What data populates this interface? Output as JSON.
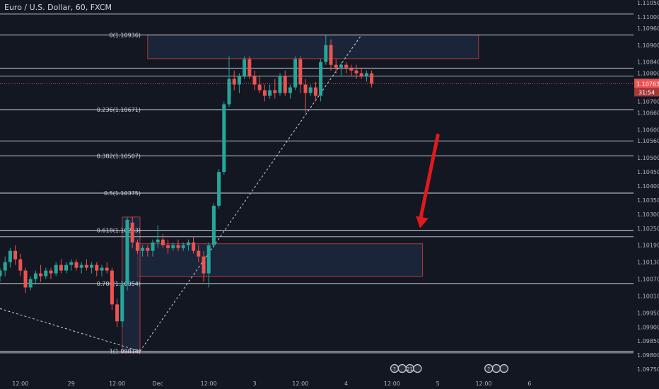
{
  "header": {
    "title": "Euro / U.S. Dollar, 60, FXCM"
  },
  "price_tag": {
    "value": "1.10763",
    "countdown": "31:54"
  },
  "colors": {
    "background": "#131722",
    "up": "#26a69a",
    "down": "#ef5350",
    "zone_fill": "#1e2c45",
    "zone_border": "#b23a3a",
    "line": "#d1d4dc",
    "axis_text": "#b2b5be",
    "arrow": "#e0191c",
    "price_tag": "#ef5350"
  },
  "chart_data": {
    "type": "candlestick",
    "title": "Euro / U.S. Dollar, 60, FXCM",
    "ylim": [
      1.0973,
      1.1106
    ],
    "y_ticks": [
      "1.11050",
      "1.11000",
      "1.10960",
      "1.10900",
      "1.10840",
      "1.10800",
      "1.10760",
      "1.10700",
      "1.10660",
      "1.10600",
      "1.10560",
      "1.10500",
      "1.10450",
      "1.10400",
      "1.10350",
      "1.10300",
      "1.10250",
      "1.10190",
      "1.10130",
      "1.10070",
      "1.10010",
      "1.09950",
      "1.09900",
      "1.09850",
      "1.09800",
      "1.09750"
    ],
    "x_ticks": [
      {
        "label": "12:00",
        "t": 4
      },
      {
        "label": "29",
        "t": 14
      },
      {
        "label": "12:00",
        "t": 23
      },
      {
        "label": "Dec",
        "t": 31
      },
      {
        "label": "12:00",
        "t": 41
      },
      {
        "label": "3",
        "t": 50
      },
      {
        "label": "12:00",
        "t": 59
      },
      {
        "label": "4",
        "t": 68
      },
      {
        "label": "12:00",
        "t": 77
      },
      {
        "label": "5",
        "t": 86
      },
      {
        "label": "12:00",
        "t": 95
      },
      {
        "label": "6",
        "t": 104
      }
    ],
    "fib_levels": [
      {
        "label": "0(1.10936)",
        "value": 1.10936
      },
      {
        "label": "0.236(1.10671)",
        "value": 1.10671
      },
      {
        "label": "0.382(1.10507)",
        "value": 1.10507
      },
      {
        "label": "0.5(1.10375)",
        "value": 1.10375
      },
      {
        "label": "0.618(1.10243)",
        "value": 1.10243
      },
      {
        "label": "0.786(1.10054)",
        "value": 1.10054
      },
      {
        "label": "1(1.09814)",
        "value": 1.09814
      }
    ],
    "horizontal_lines": [
      1.1101,
      1.10818,
      1.1079,
      1.1056,
      1.1022,
      1.09808
    ],
    "current_price": 1.10763,
    "zones": [
      {
        "t0": 29,
        "t1": 94,
        "top": 1.10936,
        "bottom": 1.10852
      },
      {
        "t0": 27,
        "t1": 83,
        "top": 1.10195,
        "bottom": 1.1008
      },
      {
        "t0": 24,
        "t1": 27.5,
        "top": 1.1029,
        "bottom": 1.0981
      }
    ],
    "candles": [
      [
        0,
        1.1008,
        1.1011,
        1.1006,
        1.101
      ],
      [
        1,
        1.101,
        1.1015,
        1.1008,
        1.1013
      ],
      [
        2,
        1.1013,
        1.1018,
        1.1011,
        1.1017
      ],
      [
        3,
        1.1017,
        1.1019,
        1.1012,
        1.1014
      ],
      [
        4,
        1.1014,
        1.1016,
        1.1008,
        1.101
      ],
      [
        5,
        1.101,
        1.1011,
        1.1002,
        1.1004
      ],
      [
        6,
        1.1004,
        1.1008,
        1.1003,
        1.1007
      ],
      [
        7,
        1.1007,
        1.101,
        1.1005,
        1.1009
      ],
      [
        8,
        1.1009,
        1.1012,
        1.1006,
        1.1008
      ],
      [
        9,
        1.1008,
        1.1011,
        1.1007,
        1.101
      ],
      [
        10,
        1.101,
        1.1011,
        1.1007,
        1.1009
      ],
      [
        11,
        1.1009,
        1.1013,
        1.1008,
        1.1012
      ],
      [
        12,
        1.1012,
        1.1014,
        1.1009,
        1.101
      ],
      [
        13,
        1.101,
        1.1013,
        1.1009,
        1.1012
      ],
      [
        14,
        1.1012,
        1.1014,
        1.101,
        1.1013
      ],
      [
        15,
        1.1013,
        1.1014,
        1.101,
        1.1011
      ],
      [
        16,
        1.1011,
        1.1013,
        1.1009,
        1.1012
      ],
      [
        17,
        1.1012,
        1.1014,
        1.101,
        1.1011
      ],
      [
        18,
        1.1011,
        1.1013,
        1.1009,
        1.1012
      ],
      [
        19,
        1.1012,
        1.1013,
        1.1008,
        1.101
      ],
      [
        20,
        1.101,
        1.1012,
        1.1008,
        1.1011
      ],
      [
        21,
        1.1011,
        1.1013,
        1.1009,
        1.101
      ],
      [
        22,
        1.101,
        1.1011,
        1.0996,
        1.0998
      ],
      [
        23,
        1.0998,
        1.1,
        1.099,
        1.0992
      ],
      [
        24,
        1.0992,
        1.1006,
        1.099,
        1.1005
      ],
      [
        25,
        1.1005,
        1.1029,
        1.1003,
        1.1028
      ],
      [
        26,
        1.1027,
        1.1029,
        1.1018,
        1.102
      ],
      [
        27,
        1.102,
        1.1021,
        1.1016,
        1.1017
      ],
      [
        28,
        1.1017,
        1.1019,
        1.1015,
        1.1018
      ],
      [
        29,
        1.1018,
        1.1019,
        1.1015,
        1.1017
      ],
      [
        30,
        1.1017,
        1.1021,
        1.1015,
        1.102
      ],
      [
        31,
        1.102,
        1.1026,
        1.1018,
        1.1021
      ],
      [
        32,
        1.1021,
        1.1023,
        1.1018,
        1.1019
      ],
      [
        33,
        1.1019,
        1.1021,
        1.1016,
        1.1018
      ],
      [
        34,
        1.1018,
        1.102,
        1.1017,
        1.1019
      ],
      [
        35,
        1.1019,
        1.1021,
        1.1017,
        1.1018
      ],
      [
        36,
        1.1018,
        1.102,
        1.1017,
        1.1019
      ],
      [
        37,
        1.1019,
        1.1021,
        1.1017,
        1.102
      ],
      [
        38,
        1.102,
        1.1022,
        1.1016,
        1.1017
      ],
      [
        39,
        1.1017,
        1.1019,
        1.1013,
        1.1015
      ],
      [
        40,
        1.1015,
        1.1017,
        1.1006,
        1.1009
      ],
      [
        41,
        1.1009,
        1.102,
        1.1004,
        1.1019
      ],
      [
        42,
        1.1019,
        1.1034,
        1.1018,
        1.1033
      ],
      [
        43,
        1.1033,
        1.1046,
        1.1032,
        1.1045
      ],
      [
        44,
        1.1045,
        1.107,
        1.1044,
        1.1069
      ],
      [
        45,
        1.1069,
        1.1086,
        1.1068,
        1.1078
      ],
      [
        46,
        1.1078,
        1.1081,
        1.1074,
        1.1076
      ],
      [
        47,
        1.1076,
        1.108,
        1.1073,
        1.1079
      ],
      [
        48,
        1.1079,
        1.1086,
        1.1078,
        1.1085
      ],
      [
        49,
        1.1085,
        1.1086,
        1.1078,
        1.1079
      ],
      [
        50,
        1.1079,
        1.1081,
        1.1074,
        1.1076
      ],
      [
        51,
        1.1076,
        1.1079,
        1.1073,
        1.1074
      ],
      [
        52,
        1.1074,
        1.1076,
        1.107,
        1.1072
      ],
      [
        53,
        1.1072,
        1.1076,
        1.1071,
        1.1074
      ],
      [
        54,
        1.1074,
        1.1078,
        1.1071,
        1.1073
      ],
      [
        55,
        1.1073,
        1.108,
        1.1072,
        1.1079
      ],
      [
        56,
        1.1079,
        1.1081,
        1.1072,
        1.1073
      ],
      [
        57,
        1.1073,
        1.1076,
        1.1071,
        1.1075
      ],
      [
        58,
        1.1075,
        1.1086,
        1.1074,
        1.1085
      ],
      [
        59,
        1.1085,
        1.1086,
        1.1073,
        1.1076
      ],
      [
        60,
        1.1076,
        1.1078,
        1.1066,
        1.1073
      ],
      [
        61,
        1.1073,
        1.1076,
        1.1072,
        1.1075
      ],
      [
        62,
        1.1075,
        1.1077,
        1.107,
        1.1072
      ],
      [
        63,
        1.1072,
        1.1085,
        1.107,
        1.1084
      ],
      [
        64,
        1.1084,
        1.10936,
        1.1083,
        1.109
      ],
      [
        65,
        1.109,
        1.1092,
        1.1081,
        1.1083
      ],
      [
        66,
        1.1083,
        1.1085,
        1.108,
        1.1082
      ],
      [
        67,
        1.1082,
        1.1084,
        1.1079,
        1.1083
      ],
      [
        68,
        1.1083,
        1.1084,
        1.108,
        1.1082
      ],
      [
        69,
        1.1082,
        1.1083,
        1.1079,
        1.1081
      ],
      [
        70,
        1.1081,
        1.1083,
        1.1078,
        1.108
      ],
      [
        71,
        1.108,
        1.1082,
        1.1078,
        1.1079
      ],
      [
        72,
        1.1079,
        1.1081,
        1.1077,
        1.108
      ],
      [
        73,
        1.108,
        1.1081,
        1.1075,
        1.10763
      ]
    ],
    "event_markers": [
      {
        "t": 77.5,
        "n": "?"
      },
      {
        "t": 79,
        "n": ""
      },
      {
        "t": 80.5,
        "n": "21"
      },
      {
        "t": 82,
        "n": ""
      },
      {
        "t": 96,
        "n": "?"
      },
      {
        "t": 97.5,
        "n": ""
      },
      {
        "t": 99,
        "n": ""
      }
    ],
    "arrow": {
      "from": {
        "t": 86,
        "v": 1.1058
      },
      "to": {
        "t": 82.5,
        "v": 1.1025
      }
    }
  }
}
